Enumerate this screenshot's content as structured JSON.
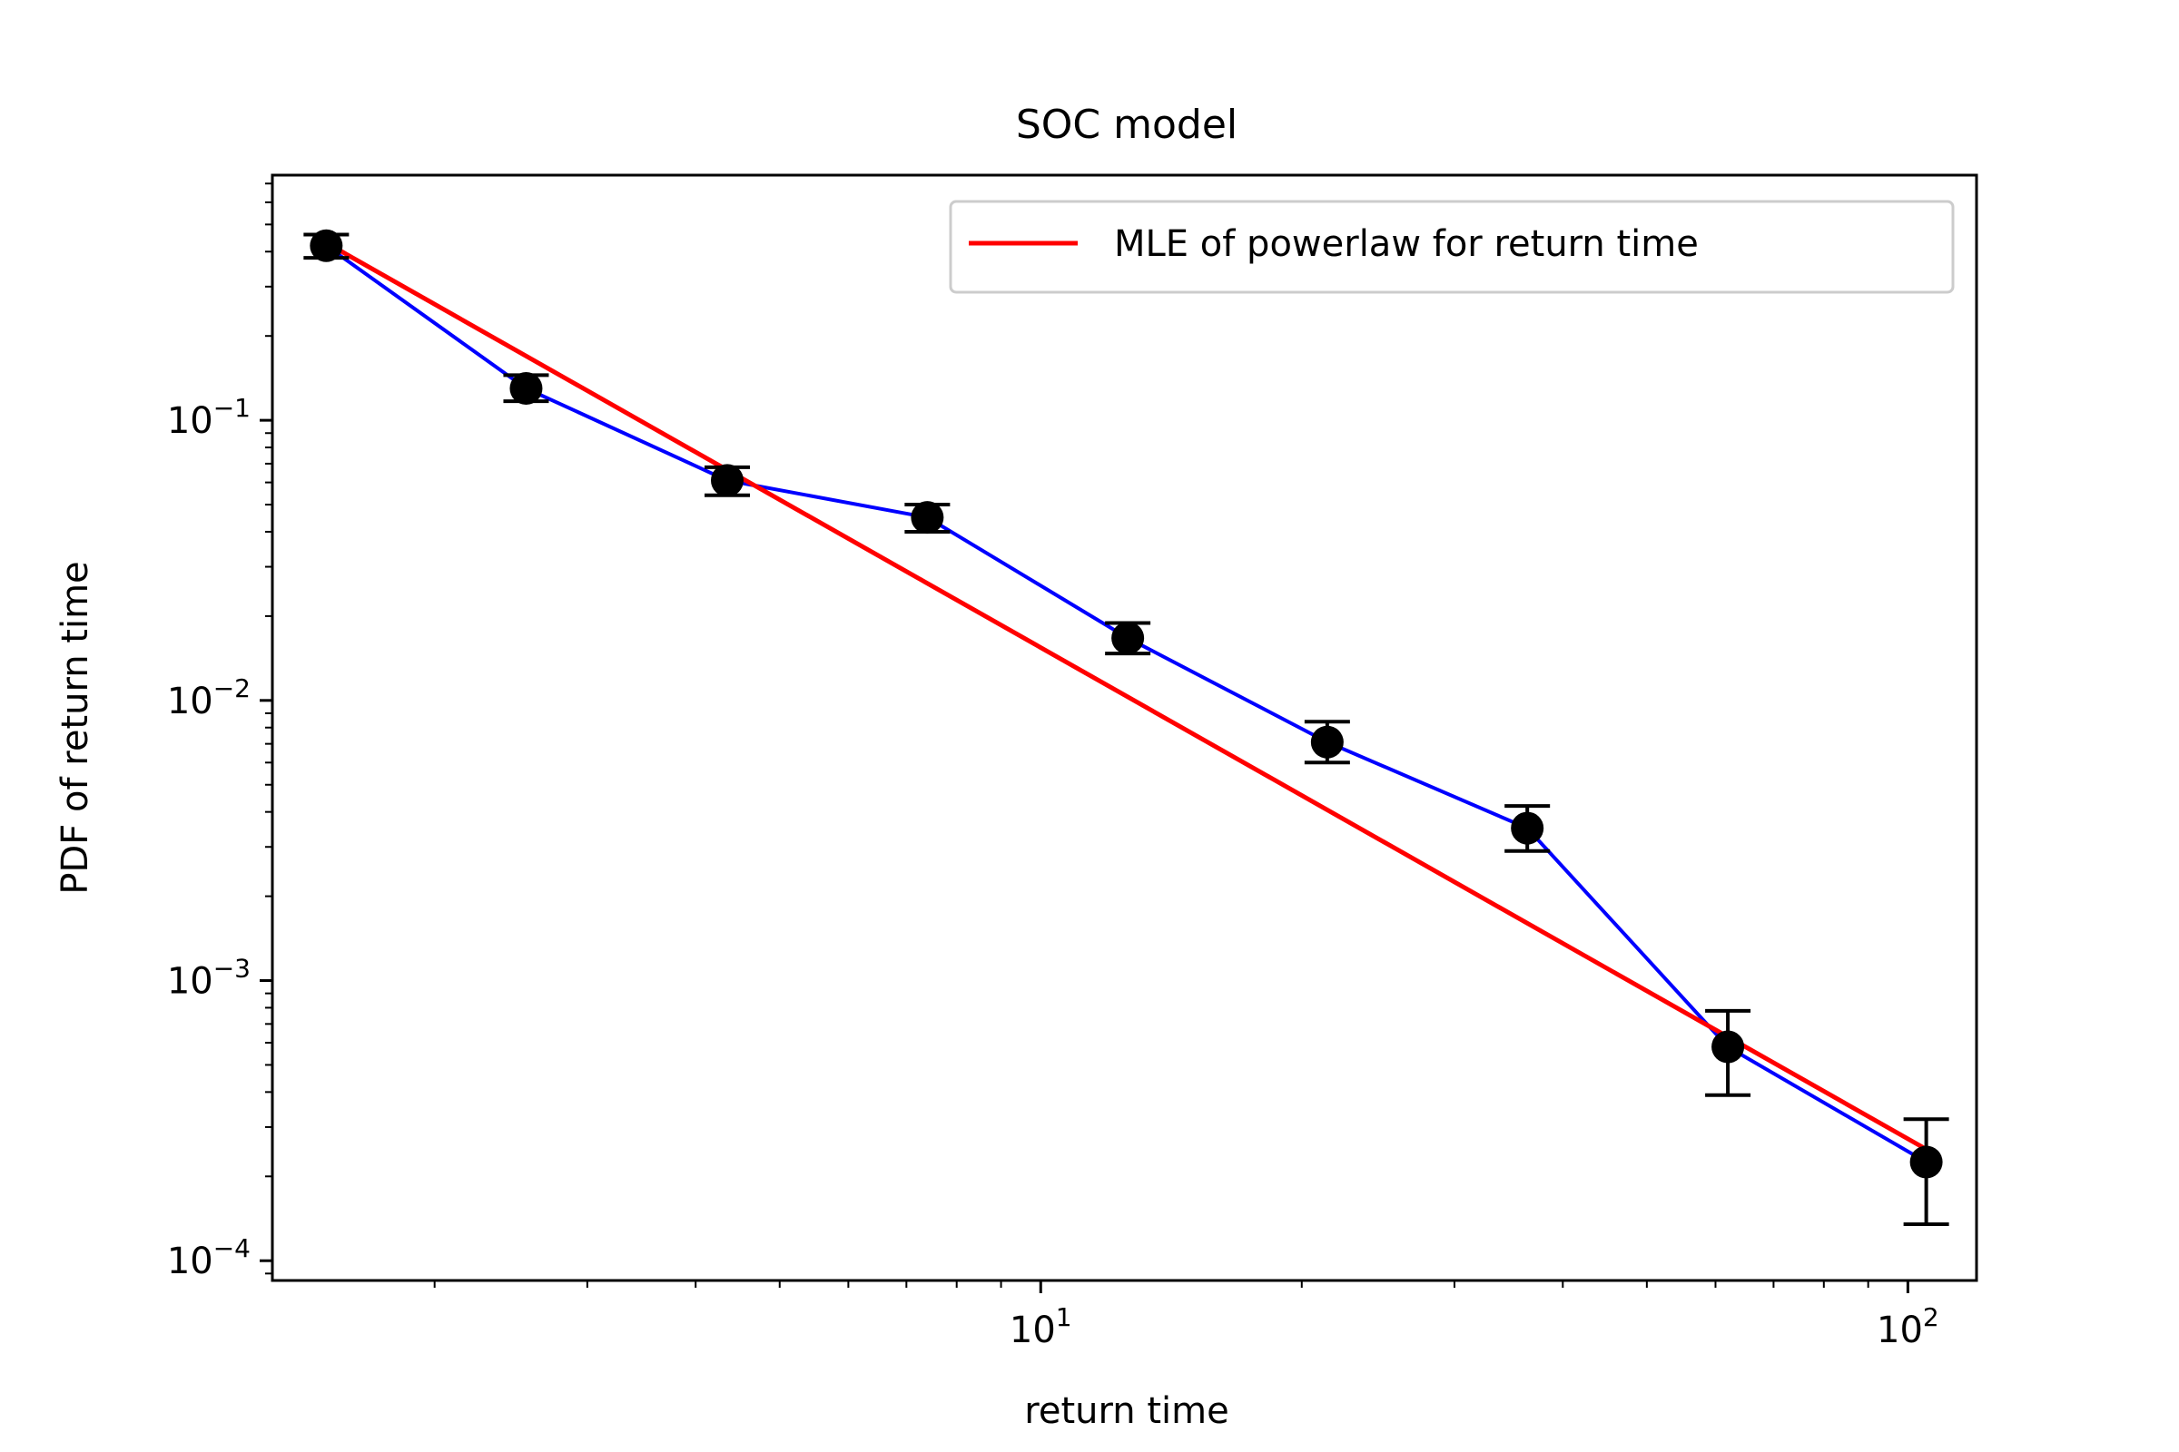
{
  "chart_data": {
    "type": "line",
    "title": "SOC model",
    "xlabel": "return time",
    "ylabel": "PDF of return time",
    "xscale": "log",
    "yscale": "log",
    "xlim": [
      1.3,
      120
    ],
    "ylim": [
      8.5e-05,
      0.75
    ],
    "grid": false,
    "legend": {
      "placement": "top-right",
      "entries": [
        "MLE of powerlaw for return time"
      ]
    },
    "x_ticks": [
      {
        "value": 10,
        "base": "10",
        "exp": "1"
      },
      {
        "value": 100,
        "base": "10",
        "exp": "2"
      }
    ],
    "y_ticks": [
      {
        "value": 0.1,
        "base": "10",
        "exp": "−1"
      },
      {
        "value": 0.01,
        "base": "10",
        "exp": "−2"
      },
      {
        "value": 0.001,
        "base": "10",
        "exp": "−3"
      },
      {
        "value": 0.0001,
        "base": "10",
        "exp": "−4"
      }
    ],
    "series": [
      {
        "style": "line+errorbar",
        "line_color": "#0000ff",
        "marker_color": "#000000",
        "x": [
          1.5,
          2.55,
          4.35,
          7.4,
          12.6,
          21.4,
          36.4,
          62,
          105
        ],
        "y": [
          0.42,
          0.13,
          0.061,
          0.045,
          0.0167,
          0.0071,
          0.0035,
          0.00058,
          0.000225
        ],
        "y_err_low": [
          0.38,
          0.117,
          0.054,
          0.04,
          0.0147,
          0.006,
          0.0029,
          0.00039,
          0.000135
        ],
        "y_err_high": [
          0.46,
          0.145,
          0.068,
          0.05,
          0.0189,
          0.0084,
          0.0042,
          0.00078,
          0.00032
        ]
      },
      {
        "name": "MLE of powerlaw for return time",
        "style": "line",
        "line_color": "#ff0000",
        "x": [
          1.5,
          105
        ],
        "y": [
          0.43,
          0.00025
        ]
      }
    ]
  }
}
